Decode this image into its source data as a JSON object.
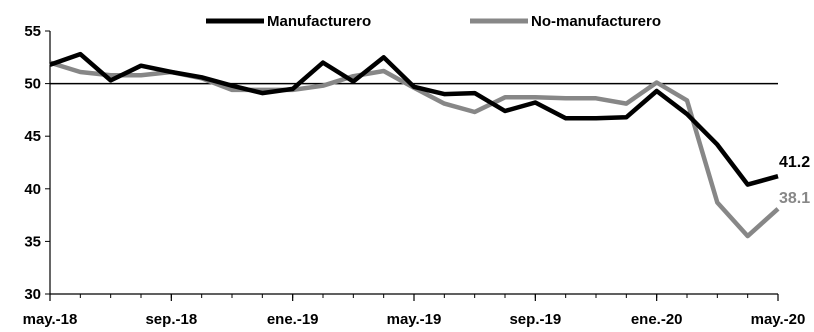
{
  "chart_data": {
    "type": "line",
    "title": "",
    "xlabel": "",
    "ylabel": "",
    "ylim": [
      30,
      55
    ],
    "yticks": [
      30,
      35,
      40,
      45,
      50,
      55
    ],
    "reference_line": 50,
    "grid": false,
    "legend_position": "top",
    "x_tick_labels": [
      "may.-18",
      "sep.-18",
      "ene.-19",
      "may.-19",
      "sep.-19",
      "ene.-20",
      "may.-20"
    ],
    "x_tick_indices": [
      0,
      4,
      8,
      12,
      16,
      20,
      24
    ],
    "x": [
      "may.-18",
      "jun.-18",
      "jul.-18",
      "ago.-18",
      "sep.-18",
      "oct.-18",
      "nov.-18",
      "dic.-18",
      "ene.-19",
      "feb.-19",
      "mar.-19",
      "abr.-19",
      "may.-19",
      "jun.-19",
      "jul.-19",
      "ago.-19",
      "sep.-19",
      "oct.-19",
      "nov.-19",
      "dic.-19",
      "ene.-20",
      "feb.-20",
      "mar.-20",
      "abr.-20",
      "may.-20"
    ],
    "series": [
      {
        "name": "Manufacturero",
        "color": "#000000",
        "values": [
          51.8,
          52.8,
          50.3,
          51.7,
          51.1,
          50.6,
          49.8,
          49.1,
          49.5,
          52.0,
          50.2,
          52.5,
          49.7,
          49.0,
          49.1,
          47.4,
          48.2,
          46.7,
          46.7,
          46.8,
          49.3,
          47.1,
          44.2,
          40.4,
          41.2
        ],
        "end_label": "41.2"
      },
      {
        "name": "No-manufacturero",
        "color": "#878787",
        "values": [
          52.0,
          51.1,
          50.8,
          50.8,
          51.1,
          50.5,
          49.4,
          49.4,
          49.4,
          49.8,
          50.7,
          51.2,
          49.6,
          48.1,
          47.3,
          48.7,
          48.7,
          48.6,
          48.6,
          48.1,
          50.1,
          48.4,
          38.7,
          35.5,
          38.1
        ],
        "end_label": "38.1"
      }
    ]
  }
}
